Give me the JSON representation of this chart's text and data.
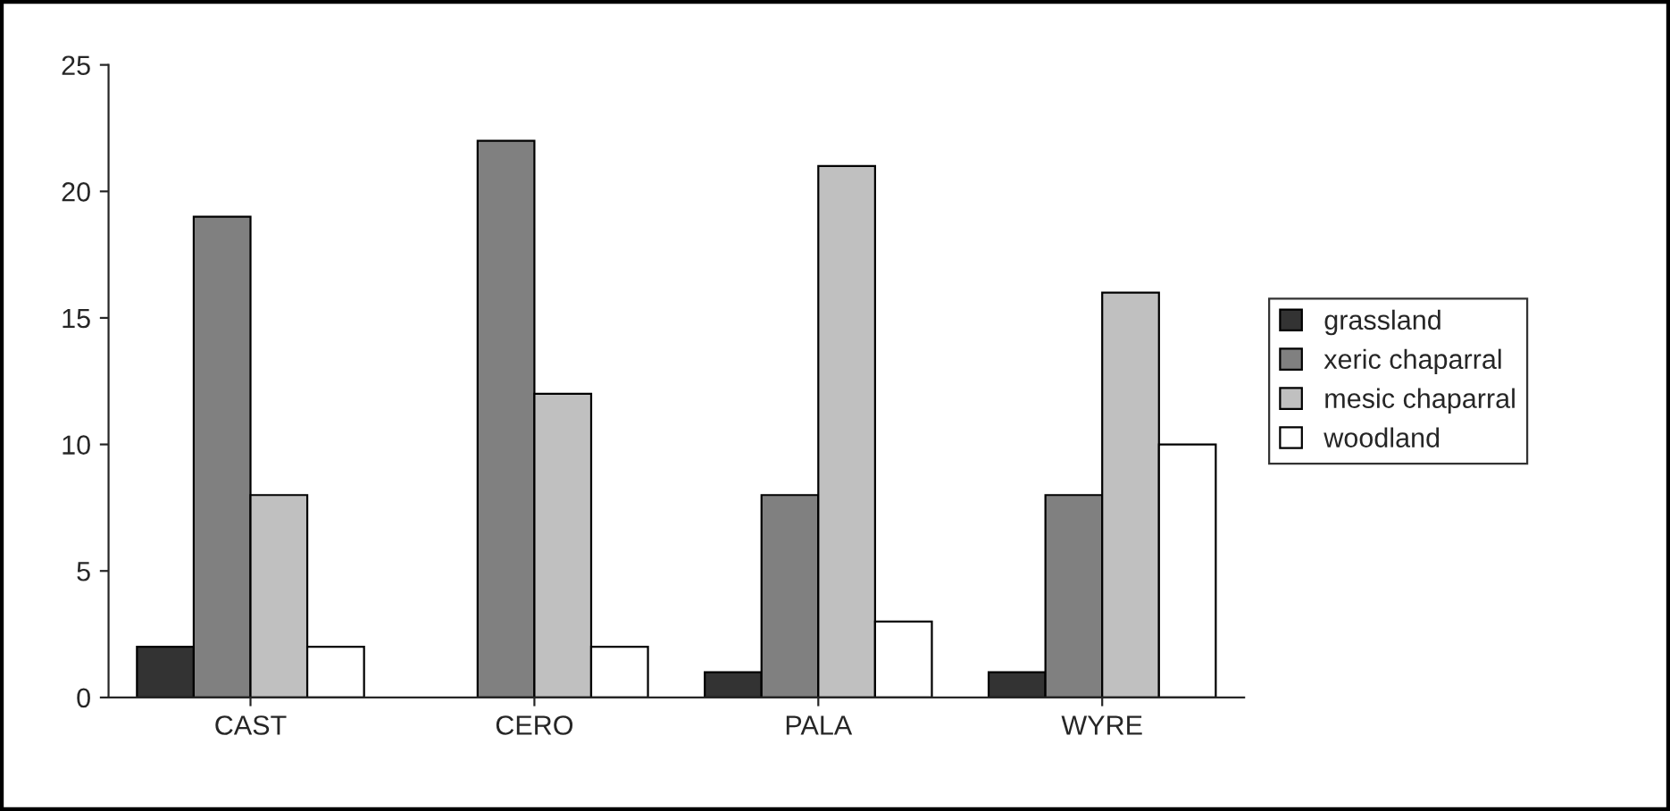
{
  "chart_data": {
    "type": "bar",
    "categories": [
      "CAST",
      "CERO",
      "PALA",
      "WYRE"
    ],
    "series": [
      {
        "name": "grassland",
        "color": "#333333",
        "values": [
          2,
          0,
          1,
          1
        ]
      },
      {
        "name": "xeric chaparral",
        "color": "#808080",
        "values": [
          19,
          22,
          8,
          8
        ]
      },
      {
        "name": "mesic chaparral",
        "color": "#c0c0c0",
        "values": [
          8,
          12,
          21,
          16
        ]
      },
      {
        "name": "woodland",
        "color": "#ffffff",
        "values": [
          2,
          2,
          3,
          10
        ]
      }
    ],
    "ylim": [
      0,
      25
    ],
    "yticks": [
      0,
      5,
      10,
      15,
      20,
      25
    ],
    "grid": false,
    "legend": "right"
  }
}
